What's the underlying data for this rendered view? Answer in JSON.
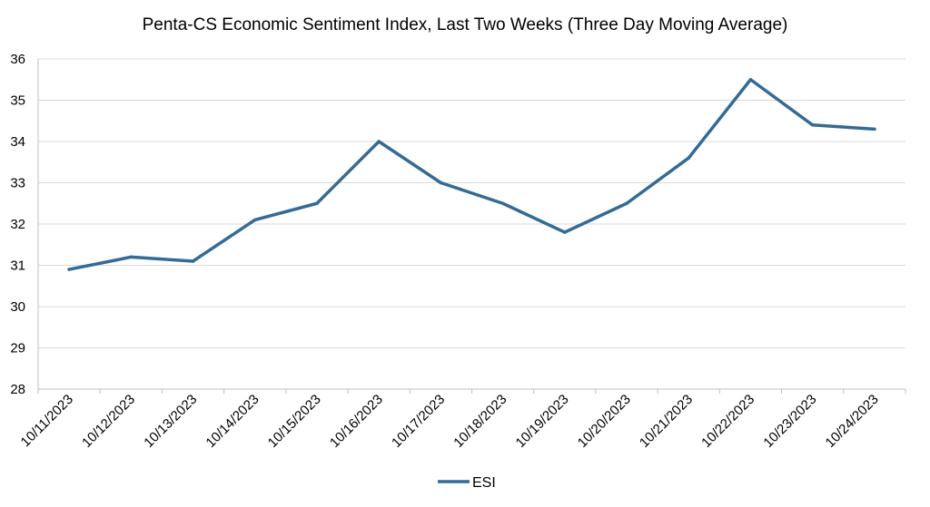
{
  "chart_data": {
    "type": "line",
    "title": "Penta-CS Economic Sentiment Index, Last Two Weeks (Three Day Moving Average)",
    "xlabel": "",
    "ylabel": "",
    "categories": [
      "10/11/2023",
      "10/12/2023",
      "10/13/2023",
      "10/14/2023",
      "10/15/2023",
      "10/16/2023",
      "10/17/2023",
      "10/18/2023",
      "10/19/2023",
      "10/20/2023",
      "10/21/2023",
      "10/22/2023",
      "10/23/2023",
      "10/24/2023"
    ],
    "series": [
      {
        "name": "ESI",
        "values": [
          30.9,
          31.2,
          31.1,
          32.1,
          32.5,
          34.0,
          33.0,
          32.5,
          31.8,
          32.5,
          33.6,
          35.5,
          34.4,
          34.3
        ],
        "color": "#336b94"
      }
    ],
    "ylim": [
      28,
      36
    ],
    "yticks": [
      28,
      29,
      30,
      31,
      32,
      33,
      34,
      35,
      36
    ],
    "grid": true,
    "legend": "bottom-center"
  }
}
